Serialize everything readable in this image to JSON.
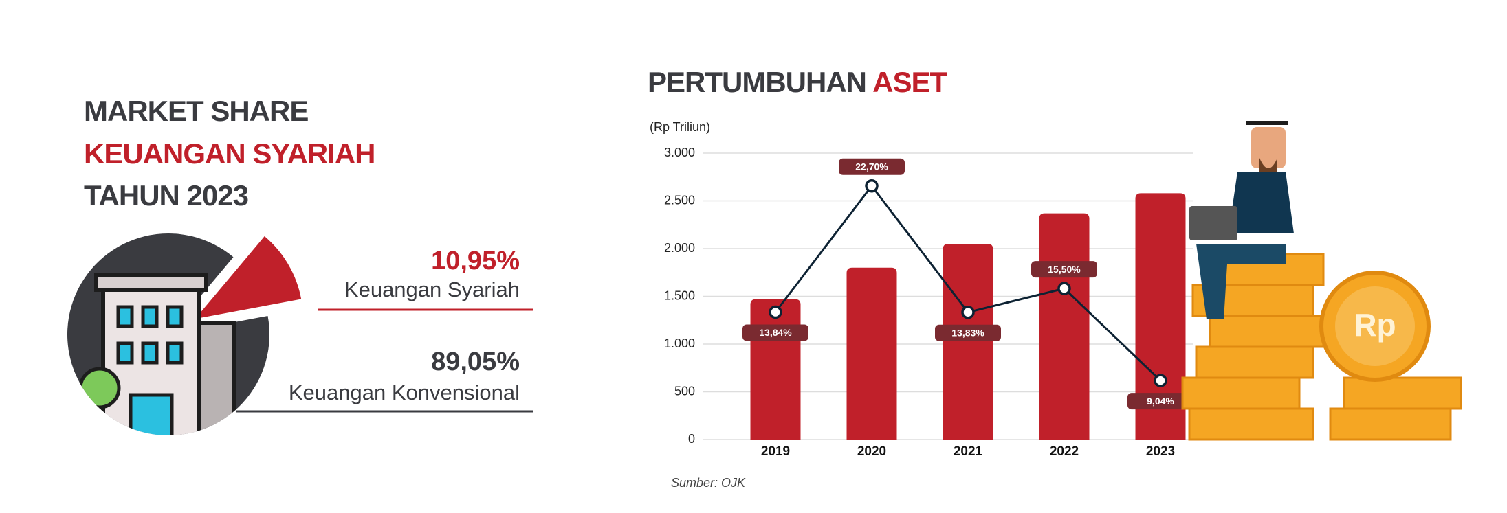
{
  "chart_data": [
    {
      "type": "pie",
      "title": [
        "MARKET SHARE",
        "KEUANGAN SYARIAH",
        "TAHUN 2023"
      ],
      "categories": [
        "Keuangan Syariah",
        "Keuangan Konvensional"
      ],
      "values": [
        10.95,
        89.05
      ],
      "value_labels": [
        "10,95%",
        "89,05%"
      ],
      "colors": [
        "#c0202a",
        "#3a3b40"
      ]
    },
    {
      "type": "bar",
      "title": [
        "PERTUMBUHAN",
        "ASET"
      ],
      "y_label": "(Rp Triliun)",
      "source": "Sumber: OJK",
      "categories": [
        "2019",
        "2020",
        "2021",
        "2022",
        "2023"
      ],
      "series": [
        {
          "type": "bar",
          "color": "#c0202a",
          "values": [
            1470,
            1800,
            2050,
            2370,
            2580
          ]
        },
        {
          "type": "line",
          "axis": "y2",
          "color": "#0d2233",
          "values": [
            13.84,
            22.7,
            13.83,
            15.5,
            9.04
          ],
          "value_labels": [
            "13,84%",
            "22,70%",
            "13,83%",
            "15,50%",
            "9,04%"
          ]
        }
      ],
      "ylim": [
        0,
        3000
      ],
      "yticks": [
        0,
        500,
        {
          "value": 1000,
          "label": "1.000"
        },
        {
          "value": 1500,
          "label": "1.500"
        },
        {
          "value": 2000,
          "label": "2.000"
        },
        {
          "value": 2500,
          "label": "2.500"
        },
        {
          "value": 3000,
          "label": "3.000"
        }
      ],
      "y2lim": [
        4.9,
        25
      ],
      "grid": true
    }
  ]
}
